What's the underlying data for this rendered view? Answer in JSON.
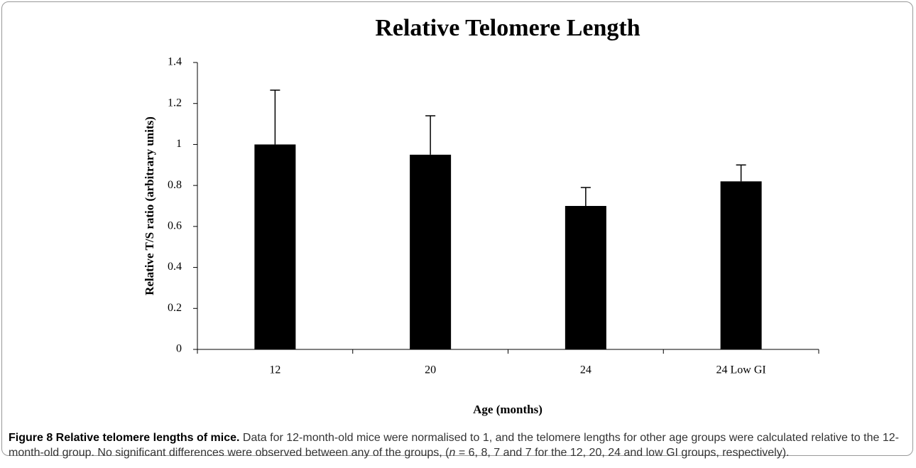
{
  "chart_data": {
    "type": "bar",
    "title": "Relative Telomere Length",
    "x_label": "Age (months)",
    "y_label": "Relative T/S ratio (arbitrary units)",
    "categories": [
      "12",
      "20",
      "24",
      "24 Low GI"
    ],
    "values": [
      1.0,
      0.95,
      0.7,
      0.82
    ],
    "errors": [
      0.265,
      0.19,
      0.09,
      0.08
    ],
    "color": "#000000",
    "ylim": [
      0,
      1.4
    ],
    "yticks": [
      0,
      0.2,
      0.4,
      0.6,
      0.8,
      1,
      1.2,
      1.4
    ],
    "grid": false
  },
  "caption": {
    "label": "Figure 8 Relative telomere lengths of mice.",
    "text": "Data for 12-month-old mice were normalised to 1, and the telomere lengths for other age groups were calculated relative to the 12-month-old group. No significant differences were observed between any of the groups, (",
    "italic": "n",
    "text_end": " = 6, 8, 7 and 7 for the 12, 20, 24 and low GI groups, respectively)."
  }
}
